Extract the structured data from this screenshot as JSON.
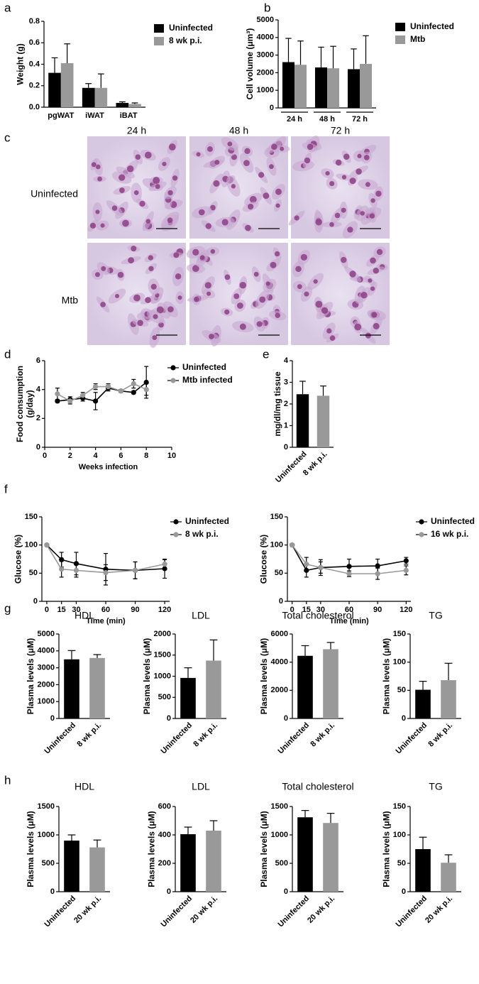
{
  "panel_labels": [
    "a",
    "b",
    "c",
    "d",
    "e",
    "f",
    "g",
    "h"
  ],
  "images": {
    "columns": [
      "24 h",
      "48 h",
      "72 h"
    ],
    "rows": [
      "Uninfected",
      "Mtb"
    ]
  },
  "chart_data": [
    {
      "type": "bar",
      "y_label": "Weight (g)",
      "categories": [
        "pgWAT",
        "iWAT",
        "iBAT"
      ],
      "series": [
        {
          "name": "Uninfected",
          "color": "#000000",
          "values": [
            0.32,
            0.18,
            0.04
          ],
          "errors": [
            0.14,
            0.04,
            0.01
          ]
        },
        {
          "name": "8 wk p.i.",
          "color": "#999999",
          "values": [
            0.41,
            0.18,
            0.03
          ],
          "errors": [
            0.18,
            0.13,
            0.01
          ]
        }
      ],
      "ylim": [
        0,
        0.8
      ],
      "yticks": [
        {
          "value": 0,
          "label": "0.0"
        },
        0.2,
        0.4,
        0.6,
        0.8
      ],
      "legend": "right"
    },
    {
      "type": "bar",
      "y_label": "Cell volume (μm³)",
      "categories": [
        "24 h",
        "48 h",
        "72 h"
      ],
      "series": [
        {
          "name": "Uninfected",
          "color": "#000000",
          "values": [
            2600,
            2300,
            2200
          ],
          "errors": [
            1350,
            1150,
            1150
          ]
        },
        {
          "name": "Mtb",
          "color": "#999999",
          "values": [
            2450,
            2250,
            2500
          ],
          "errors": [
            1350,
            1250,
            1600
          ]
        }
      ],
      "ylim": [
        0,
        5000
      ],
      "yticks": [
        0,
        1000,
        2000,
        3000,
        4000,
        5000
      ],
      "legend": "right"
    },
    {
      "type": "line",
      "y_label": [
        "Food consumption",
        "(g/day)"
      ],
      "x_label": "Weeks infection",
      "x": [
        1,
        2,
        3,
        4,
        5,
        6,
        7,
        8
      ],
      "series": [
        {
          "name": "Uninfected",
          "color": "#000000",
          "values": [
            3.2,
            3.3,
            3.4,
            3.2,
            4.1,
            3.9,
            3.8,
            4.5
          ],
          "errors": [
            0.1,
            0.2,
            0.2,
            0.6,
            0.2,
            0.1,
            0.1,
            1.1
          ]
        },
        {
          "name": "Mtb infected",
          "color": "#999999",
          "values": [
            3.7,
            3.2,
            3.6,
            4.2,
            4.2,
            3.9,
            4.4,
            4.0
          ],
          "errors": [
            0.4,
            0.2,
            0.2,
            0.2,
            0.2,
            0.1,
            0.3,
            0.4
          ]
        }
      ],
      "xlim": [
        0,
        10
      ],
      "xticks": [
        0,
        2,
        4,
        6,
        8,
        10
      ],
      "ylim": [
        0,
        6
      ],
      "yticks": [
        0,
        2,
        4,
        6
      ],
      "legend": "right"
    },
    {
      "type": "bar",
      "y_label": "mg/dl/mg tissue",
      "categories": [
        "Uninfected",
        "8 wk p.i."
      ],
      "values": [
        2.45,
        2.38
      ],
      "errors": [
        0.6,
        0.45
      ],
      "colors": [
        "#000000",
        "#999999"
      ],
      "ylim": [
        0,
        4
      ],
      "yticks": [
        0,
        1,
        2,
        3,
        4
      ],
      "category_label_rotation": -45
    },
    {
      "type": "line",
      "y_label": "Glucose (%)",
      "x_label": "Time (min)",
      "x": [
        0,
        15,
        30,
        60,
        90,
        120
      ],
      "series": [
        {
          "name": "Uninfected",
          "color": "#000000",
          "values": [
            100,
            74,
            67,
            57,
            55,
            58
          ],
          "errors": [
            0,
            13,
            20,
            28,
            15,
            17
          ]
        },
        {
          "name": "8 wk p.i.",
          "color": "#999999",
          "values": [
            100,
            57,
            55,
            51,
            55,
            66
          ],
          "errors": [
            0,
            14,
            12,
            14,
            15,
            8
          ]
        }
      ],
      "xlim": [
        -5,
        125
      ],
      "xticks": [
        0,
        15,
        30,
        60,
        90,
        120
      ],
      "ylim": [
        0,
        150
      ],
      "yticks": [
        0,
        50,
        100,
        150
      ],
      "legend": "right"
    },
    {
      "type": "line",
      "y_label": "Glucose (%)",
      "x_label": "Time (min)",
      "x": [
        0,
        15,
        30,
        60,
        90,
        120
      ],
      "series": [
        {
          "name": "Uninfected",
          "color": "#000000",
          "values": [
            100,
            55,
            60,
            62,
            63,
            72
          ],
          "errors": [
            0,
            12,
            10,
            13,
            12,
            6
          ]
        },
        {
          "name": "16 wk p.i.",
          "color": "#999999",
          "values": [
            100,
            66,
            60,
            49,
            49,
            55
          ],
          "errors": [
            0,
            12,
            14,
            5,
            10,
            8
          ]
        }
      ],
      "xlim": [
        -5,
        125
      ],
      "xticks": [
        0,
        15,
        30,
        60,
        90,
        120
      ],
      "ylim": [
        0,
        150
      ],
      "yticks": [
        0,
        50,
        100,
        150
      ],
      "legend": "right"
    },
    {
      "type": "bar",
      "title": "HDL",
      "y_label": "Plasma levels (μM)",
      "categories": [
        "Uninfected",
        "8 wk p.i."
      ],
      "values": [
        3500,
        3580
      ],
      "errors": [
        520,
        200
      ],
      "colors": [
        "#000000",
        "#999999"
      ],
      "ylim": [
        0,
        5000
      ],
      "yticks": [
        0,
        1000,
        2000,
        3000,
        4000,
        5000
      ],
      "category_label_rotation": -45
    },
    {
      "type": "bar",
      "title": "LDL",
      "y_label": "Plasma levels (μM)",
      "categories": [
        "Uninfected",
        "8 wk p.i."
      ],
      "values": [
        960,
        1370
      ],
      "errors": [
        240,
        490
      ],
      "colors": [
        "#000000",
        "#999999"
      ],
      "ylim": [
        0,
        2000
      ],
      "yticks": [
        0,
        500,
        1000,
        1500,
        2000
      ],
      "category_label_rotation": -45
    },
    {
      "type": "bar",
      "title": "Total cholesterol",
      "y_label": "Plasma levels (μM)",
      "categories": [
        "Uninfected",
        "8 wk p.i."
      ],
      "values": [
        4450,
        4920
      ],
      "errors": [
        720,
        480
      ],
      "colors": [
        "#000000",
        "#999999"
      ],
      "ylim": [
        0,
        6000
      ],
      "yticks": [
        0,
        2000,
        4000,
        6000
      ],
      "category_label_rotation": -45
    },
    {
      "type": "bar",
      "title": "TG",
      "y_label": "Plasma levels (μM)",
      "categories": [
        "Uninfected",
        "8 wk p.i."
      ],
      "values": [
        51,
        68
      ],
      "errors": [
        15,
        30
      ],
      "colors": [
        "#000000",
        "#999999"
      ],
      "ylim": [
        0,
        150
      ],
      "yticks": [
        0,
        50,
        100,
        150
      ],
      "category_label_rotation": -45
    },
    {
      "type": "bar",
      "title": "HDL",
      "y_label": "Plasma levels (μM)",
      "categories": [
        "Uninfected",
        "20 wk p.i."
      ],
      "values": [
        900,
        780
      ],
      "errors": [
        100,
        130
      ],
      "colors": [
        "#000000",
        "#999999"
      ],
      "ylim": [
        0,
        1500
      ],
      "yticks": [
        0,
        500,
        1000,
        1500
      ],
      "category_label_rotation": -45
    },
    {
      "type": "bar",
      "title": "LDL",
      "y_label": "Plasma levels (μM)",
      "categories": [
        "Uninfected",
        "20 wk p.i."
      ],
      "values": [
        405,
        430
      ],
      "errors": [
        50,
        70
      ],
      "colors": [
        "#000000",
        "#999999"
      ],
      "ylim": [
        0,
        600
      ],
      "yticks": [
        0,
        200,
        400,
        600
      ],
      "category_label_rotation": -45
    },
    {
      "type": "bar",
      "title": "Total cholesterol",
      "y_label": "Plasma levels (μM)",
      "categories": [
        "Uninfected",
        "20 wk p.i."
      ],
      "values": [
        1310,
        1210
      ],
      "errors": [
        120,
        170
      ],
      "colors": [
        "#000000",
        "#999999"
      ],
      "ylim": [
        0,
        1500
      ],
      "yticks": [
        0,
        500,
        1000,
        1500
      ],
      "category_label_rotation": -45
    },
    {
      "type": "bar",
      "title": "TG",
      "y_label": "Plasma levels (μM)",
      "categories": [
        "Uninfected",
        "20 wk p.i."
      ],
      "values": [
        75,
        51
      ],
      "errors": [
        21,
        14
      ],
      "colors": [
        "#000000",
        "#999999"
      ],
      "ylim": [
        0,
        150
      ],
      "yticks": [
        0,
        50,
        100,
        150
      ],
      "category_label_rotation": -45
    }
  ]
}
